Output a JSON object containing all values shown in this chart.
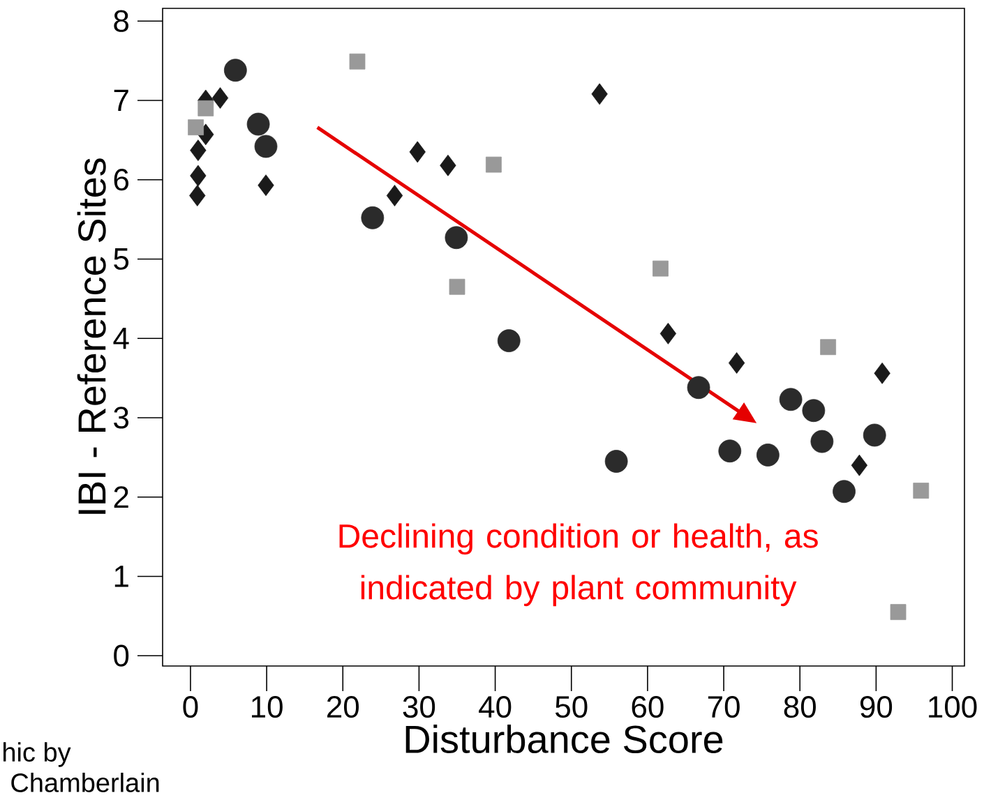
{
  "chart_data": {
    "type": "scatter",
    "xlabel": "Disturbance Score",
    "ylabel": "IBI - Reference Sites",
    "xlim": [
      -3.66,
      101.6
    ],
    "ylim": [
      -0.13,
      8.16
    ],
    "xticks": [
      0,
      10,
      20,
      30,
      40,
      50,
      60,
      70,
      80,
      90,
      100
    ],
    "yticks": [
      0,
      1,
      2,
      3,
      4,
      5,
      6,
      7,
      8
    ],
    "series": [
      {
        "color": "#1a1a1a",
        "marker": "diamond",
        "x": [
          0.9,
          1,
          1,
          2,
          2,
          3.9,
          9.9,
          26.8,
          29.8,
          33.8,
          53.7,
          62.7,
          71.7,
          87.8,
          90.8
        ],
        "values": [
          5.8,
          6.05,
          6.37,
          6.57,
          7.0,
          7.03,
          5.93,
          5.8,
          6.35,
          6.18,
          7.08,
          4.06,
          3.69,
          2.4,
          3.56
        ]
      },
      {
        "color": "#2b2b2b",
        "marker": "circle",
        "x": [
          5.9,
          8.9,
          9.9,
          23.9,
          34.9,
          41.8,
          55.9,
          66.7,
          70.8,
          75.8,
          78.8,
          81.8,
          82.9,
          85.8,
          89.8
        ],
        "values": [
          7.38,
          6.7,
          6.42,
          5.52,
          5.27,
          3.97,
          2.45,
          3.38,
          2.58,
          2.53,
          3.23,
          3.09,
          2.7,
          2.07,
          2.78
        ]
      },
      {
        "color": "#999999",
        "marker": "square",
        "x": [
          0.7,
          2,
          21.9,
          39.8,
          35,
          61.7,
          83.7,
          95.9,
          92.9
        ],
        "values": [
          6.66,
          6.9,
          7.49,
          6.19,
          4.65,
          4.88,
          3.89,
          2.08,
          0.55
        ]
      }
    ],
    "annotations": [
      "Declining condition or health, as indicated by plant community",
      "hic by",
      "Chamberlain"
    ]
  }
}
